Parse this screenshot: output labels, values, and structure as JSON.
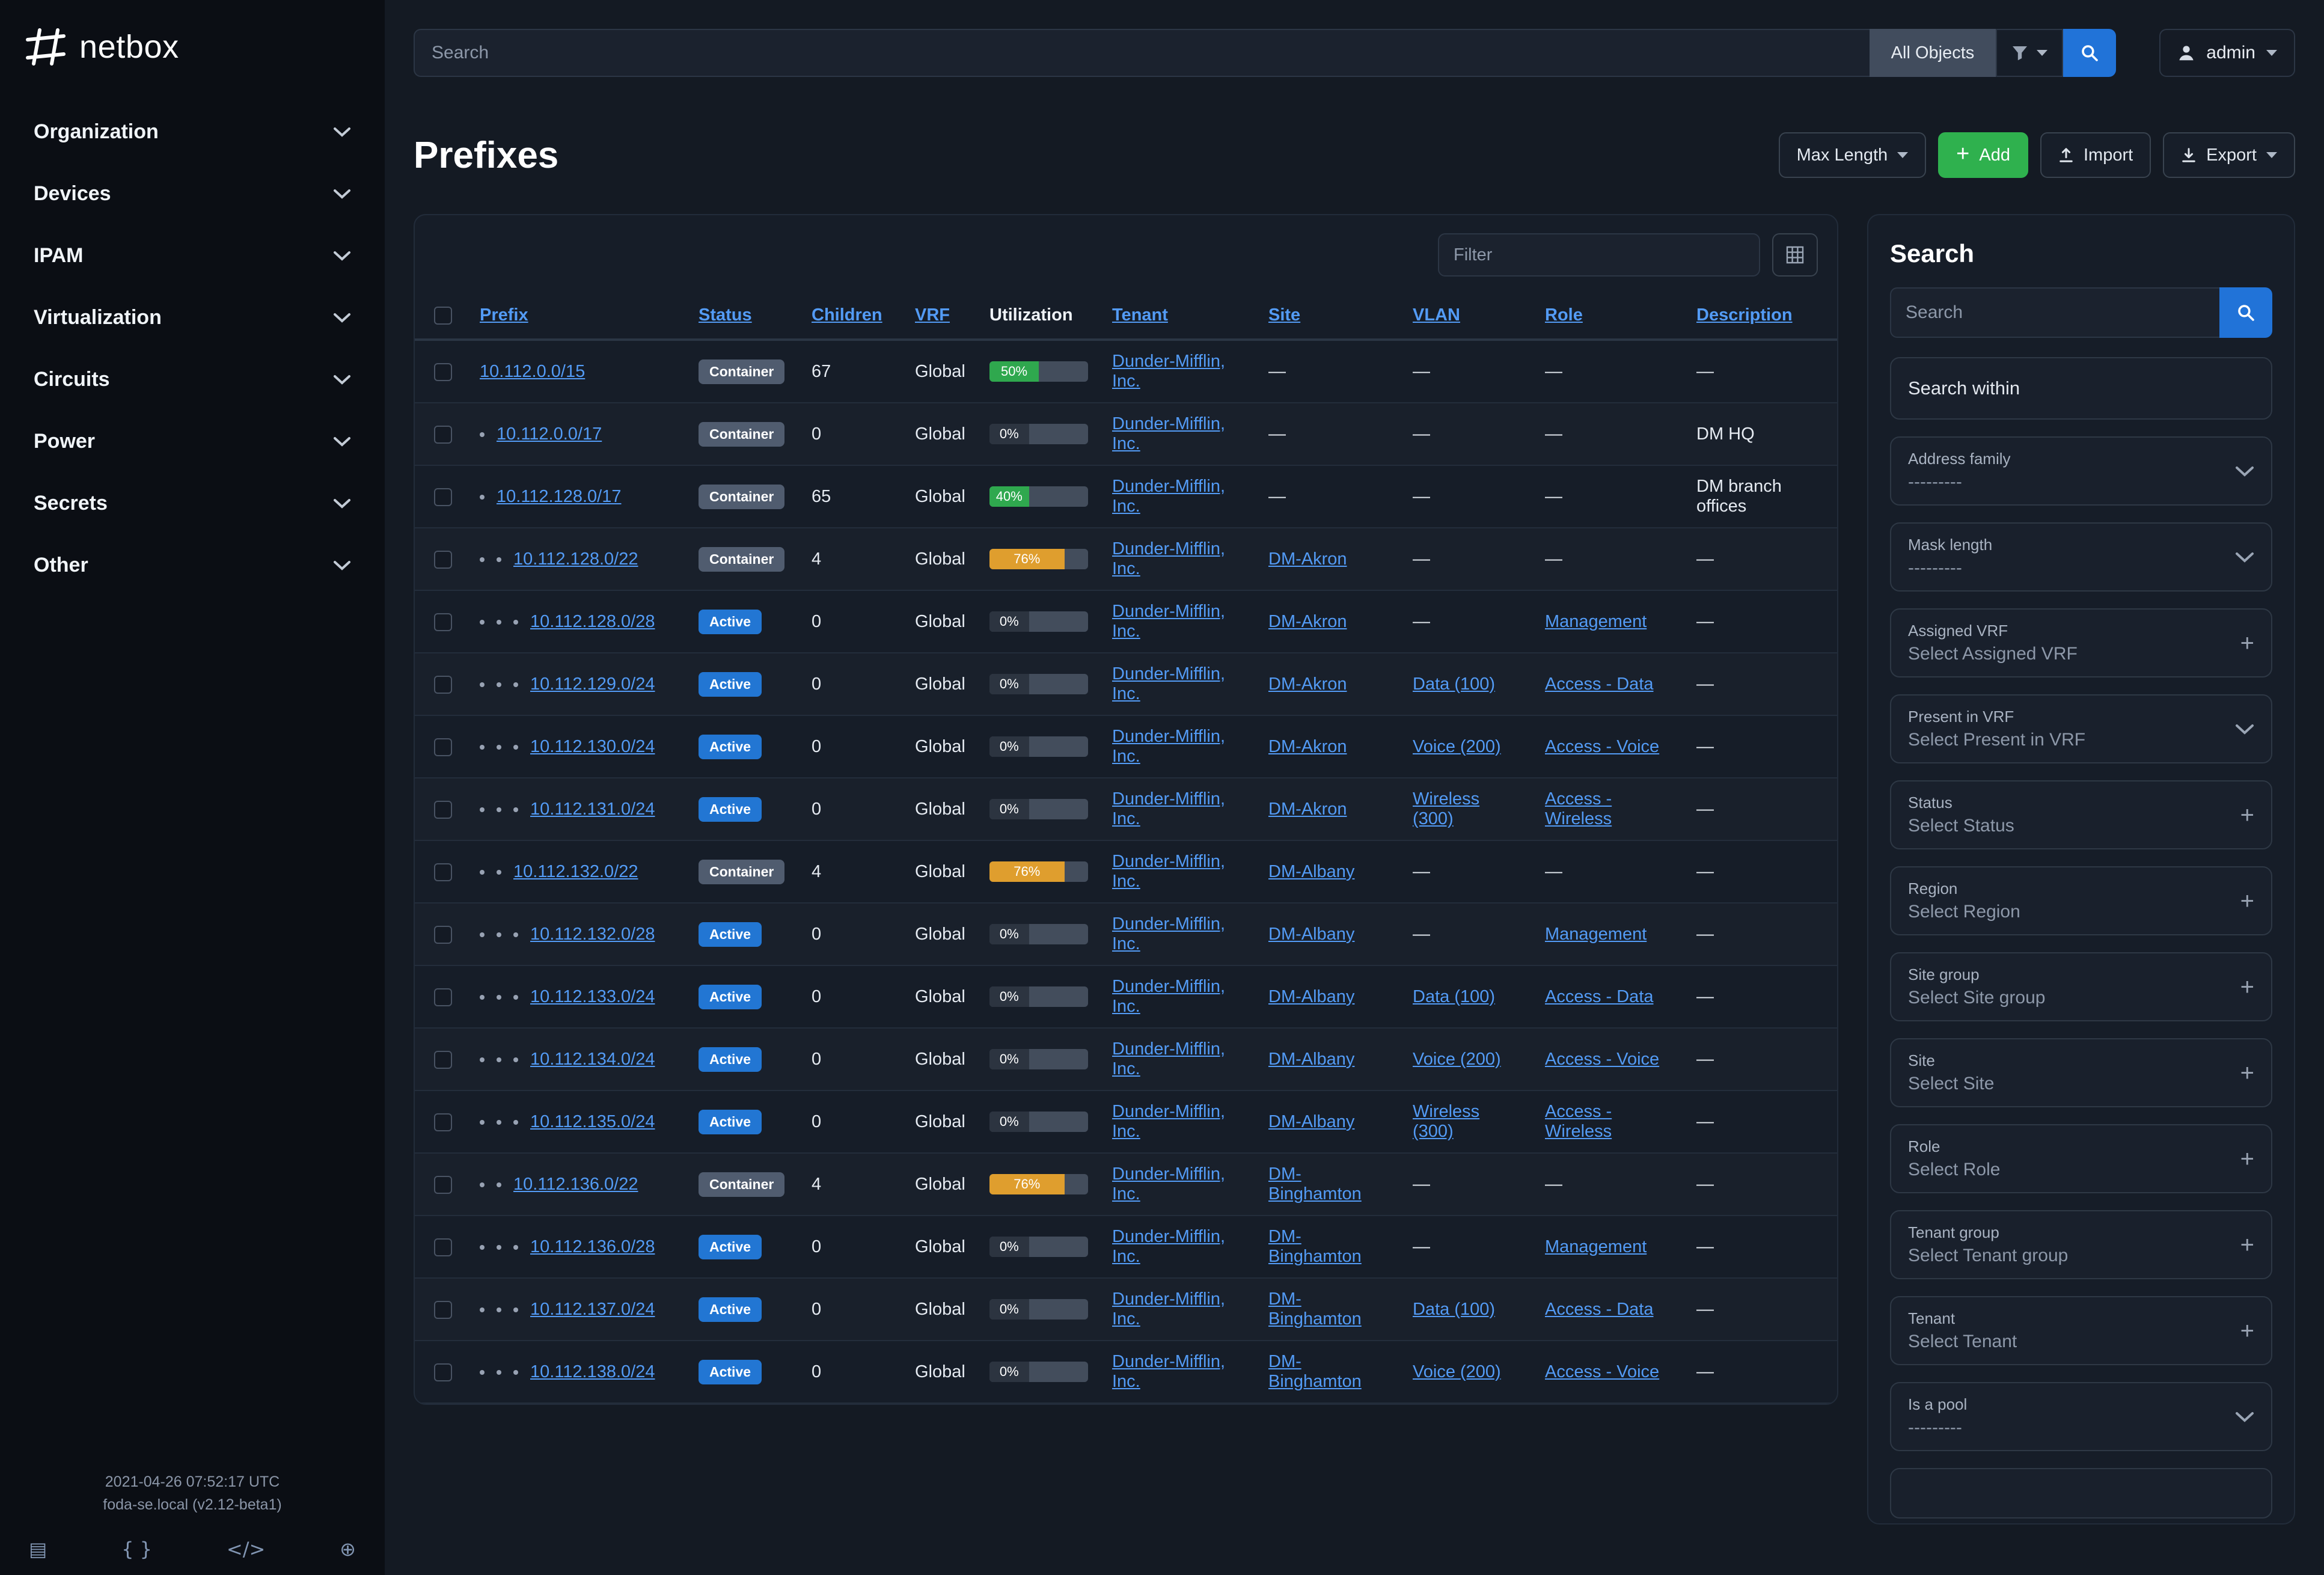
{
  "brand": {
    "name": "netbox"
  },
  "sidebar": {
    "items": [
      "Organization",
      "Devices",
      "IPAM",
      "Virtualization",
      "Circuits",
      "Power",
      "Secrets",
      "Other"
    ],
    "footer": {
      "timestamp": "2021-04-26 07:52:17 UTC",
      "host": "foda-se.local (v2.12-beta1)",
      "icons": [
        {
          "name": "book-icon",
          "glyph": "▤"
        },
        {
          "name": "braces-icon",
          "glyph": "{ }"
        },
        {
          "name": "code-icon",
          "glyph": "</>"
        },
        {
          "name": "globe-icon",
          "glyph": "⊕"
        }
      ]
    }
  },
  "topbar": {
    "search_placeholder": "Search",
    "scope_label": "All Objects",
    "user_label": "admin"
  },
  "page": {
    "title": "Prefixes",
    "toolbar": {
      "max_length_label": "Max Length",
      "add_label": "Add",
      "import_label": "Import",
      "export_label": "Export"
    }
  },
  "table": {
    "filter_placeholder": "Filter",
    "columns": [
      {
        "label": "Prefix",
        "sortable": true
      },
      {
        "label": "Status",
        "sortable": true
      },
      {
        "label": "Children",
        "sortable": true
      },
      {
        "label": "VRF",
        "sortable": true
      },
      {
        "label": "Utilization",
        "sortable": false
      },
      {
        "label": "Tenant",
        "sortable": true
      },
      {
        "label": "Site",
        "sortable": true
      },
      {
        "label": "VLAN",
        "sortable": true
      },
      {
        "label": "Role",
        "sortable": true
      },
      {
        "label": "Description",
        "sortable": true
      }
    ],
    "rows": [
      {
        "depth": 0,
        "prefix": "10.112.0.0/15",
        "status": "Container",
        "children": "67",
        "vrf": "Global",
        "utilization": "50%",
        "tenant": "Dunder-Mifflin, Inc.",
        "site": "",
        "vlan": "",
        "role": "",
        "description": ""
      },
      {
        "depth": 1,
        "prefix": "10.112.0.0/17",
        "status": "Container",
        "children": "0",
        "vrf": "Global",
        "utilization": "0%",
        "tenant": "Dunder-Mifflin, Inc.",
        "site": "",
        "vlan": "",
        "role": "",
        "description": "DM HQ"
      },
      {
        "depth": 1,
        "prefix": "10.112.128.0/17",
        "status": "Container",
        "children": "65",
        "vrf": "Global",
        "utilization": "40%",
        "tenant": "Dunder-Mifflin, Inc.",
        "site": "",
        "vlan": "",
        "role": "",
        "description": "DM branch offices"
      },
      {
        "depth": 2,
        "prefix": "10.112.128.0/22",
        "status": "Container",
        "children": "4",
        "vrf": "Global",
        "utilization": "76%",
        "tenant": "Dunder-Mifflin, Inc.",
        "site": "DM-Akron",
        "vlan": "",
        "role": "",
        "description": ""
      },
      {
        "depth": 3,
        "prefix": "10.112.128.0/28",
        "status": "Active",
        "children": "0",
        "vrf": "Global",
        "utilization": "0%",
        "tenant": "Dunder-Mifflin, Inc.",
        "site": "DM-Akron",
        "vlan": "",
        "role": "Management",
        "description": ""
      },
      {
        "depth": 3,
        "prefix": "10.112.129.0/24",
        "status": "Active",
        "children": "0",
        "vrf": "Global",
        "utilization": "0%",
        "tenant": "Dunder-Mifflin, Inc.",
        "site": "DM-Akron",
        "vlan": "Data (100)",
        "role": "Access - Data",
        "description": ""
      },
      {
        "depth": 3,
        "prefix": "10.112.130.0/24",
        "status": "Active",
        "children": "0",
        "vrf": "Global",
        "utilization": "0%",
        "tenant": "Dunder-Mifflin, Inc.",
        "site": "DM-Akron",
        "vlan": "Voice (200)",
        "role": "Access - Voice",
        "description": ""
      },
      {
        "depth": 3,
        "prefix": "10.112.131.0/24",
        "status": "Active",
        "children": "0",
        "vrf": "Global",
        "utilization": "0%",
        "tenant": "Dunder-Mifflin, Inc.",
        "site": "DM-Akron",
        "vlan": "Wireless (300)",
        "role": "Access - Wireless",
        "description": ""
      },
      {
        "depth": 2,
        "prefix": "10.112.132.0/22",
        "status": "Container",
        "children": "4",
        "vrf": "Global",
        "utilization": "76%",
        "tenant": "Dunder-Mifflin, Inc.",
        "site": "DM-Albany",
        "vlan": "",
        "role": "",
        "description": ""
      },
      {
        "depth": 3,
        "prefix": "10.112.132.0/28",
        "status": "Active",
        "children": "0",
        "vrf": "Global",
        "utilization": "0%",
        "tenant": "Dunder-Mifflin, Inc.",
        "site": "DM-Albany",
        "vlan": "",
        "role": "Management",
        "description": ""
      },
      {
        "depth": 3,
        "prefix": "10.112.133.0/24",
        "status": "Active",
        "children": "0",
        "vrf": "Global",
        "utilization": "0%",
        "tenant": "Dunder-Mifflin, Inc.",
        "site": "DM-Albany",
        "vlan": "Data (100)",
        "role": "Access - Data",
        "description": ""
      },
      {
        "depth": 3,
        "prefix": "10.112.134.0/24",
        "status": "Active",
        "children": "0",
        "vrf": "Global",
        "utilization": "0%",
        "tenant": "Dunder-Mifflin, Inc.",
        "site": "DM-Albany",
        "vlan": "Voice (200)",
        "role": "Access - Voice",
        "description": ""
      },
      {
        "depth": 3,
        "prefix": "10.112.135.0/24",
        "status": "Active",
        "children": "0",
        "vrf": "Global",
        "utilization": "0%",
        "tenant": "Dunder-Mifflin, Inc.",
        "site": "DM-Albany",
        "vlan": "Wireless (300)",
        "role": "Access - Wireless",
        "description": ""
      },
      {
        "depth": 2,
        "prefix": "10.112.136.0/22",
        "status": "Container",
        "children": "4",
        "vrf": "Global",
        "utilization": "76%",
        "tenant": "Dunder-Mifflin, Inc.",
        "site": "DM-Binghamton",
        "vlan": "",
        "role": "",
        "description": ""
      },
      {
        "depth": 3,
        "prefix": "10.112.136.0/28",
        "status": "Active",
        "children": "0",
        "vrf": "Global",
        "utilization": "0%",
        "tenant": "Dunder-Mifflin, Inc.",
        "site": "DM-Binghamton",
        "vlan": "",
        "role": "Management",
        "description": ""
      },
      {
        "depth": 3,
        "prefix": "10.112.137.0/24",
        "status": "Active",
        "children": "0",
        "vrf": "Global",
        "utilization": "0%",
        "tenant": "Dunder-Mifflin, Inc.",
        "site": "DM-Binghamton",
        "vlan": "Data (100)",
        "role": "Access - Data",
        "description": ""
      },
      {
        "depth": 3,
        "prefix": "10.112.138.0/24",
        "status": "Active",
        "children": "0",
        "vrf": "Global",
        "utilization": "0%",
        "tenant": "Dunder-Mifflin, Inc.",
        "site": "DM-Binghamton",
        "vlan": "Voice (200)",
        "role": "Access - Voice",
        "description": ""
      }
    ]
  },
  "filters_panel": {
    "title": "Search",
    "search_placeholder": "Search",
    "search_within_label": "Search within",
    "fields": [
      {
        "label": "Address family",
        "value": "---------",
        "control": "select"
      },
      {
        "label": "Mask length",
        "value": "---------",
        "control": "select"
      },
      {
        "label": "Assigned VRF",
        "value": "Select Assigned VRF",
        "control": "add"
      },
      {
        "label": "Present in VRF",
        "value": "Select Present in VRF",
        "control": "select"
      },
      {
        "label": "Status",
        "value": "Select Status",
        "control": "add"
      },
      {
        "label": "Region",
        "value": "Select Region",
        "control": "add"
      },
      {
        "label": "Site group",
        "value": "Select Site group",
        "control": "add"
      },
      {
        "label": "Site",
        "value": "Select Site",
        "control": "add"
      },
      {
        "label": "Role",
        "value": "Select Role",
        "control": "add"
      },
      {
        "label": "Tenant group",
        "value": "Select Tenant group",
        "control": "add"
      },
      {
        "label": "Tenant",
        "value": "Select Tenant",
        "control": "add"
      },
      {
        "label": "Is a pool",
        "value": "---------",
        "control": "select"
      }
    ]
  },
  "colors": {
    "link_blue": "#539bf5",
    "primary_blue": "#2173d8",
    "success_green": "#2fb14e",
    "warning_orange": "#df9e2e",
    "badge_active": "#2276d3",
    "badge_container": "#505c6f"
  }
}
